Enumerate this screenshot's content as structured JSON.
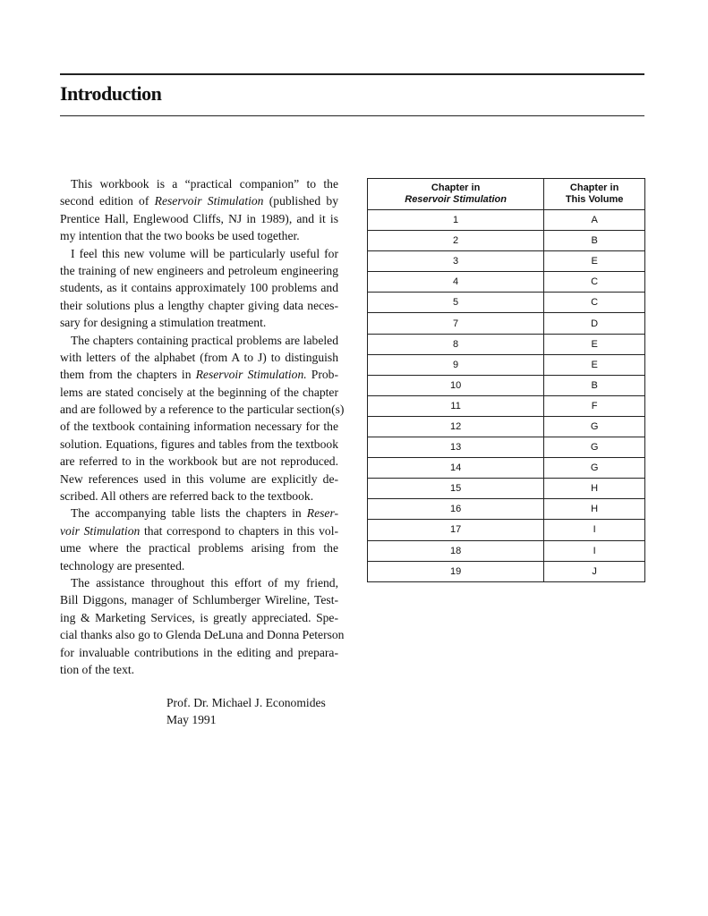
{
  "title": "Introduction",
  "body_lines": [
    {
      "ind": true,
      "parts": [
        {
          "t": "This workbook is a “practical companion” to the"
        }
      ]
    },
    {
      "parts": [
        {
          "t": "second edition of "
        },
        {
          "t": "Reservoir Stimulation",
          "i": true
        },
        {
          "t": " (published by"
        }
      ]
    },
    {
      "parts": [
        {
          "t": "Prentice Hall, Englewood Cliffs, NJ in 1989), and it is"
        }
      ]
    },
    {
      "last": true,
      "parts": [
        {
          "t": "my intention that the two books be used together."
        }
      ]
    },
    {
      "ind": true,
      "parts": [
        {
          "t": "I feel this new volume will be particularly useful for"
        }
      ]
    },
    {
      "parts": [
        {
          "t": "the training of new engineers and petroleum engineering"
        }
      ]
    },
    {
      "parts": [
        {
          "t": "students, as it contains approximately 100 problems and"
        }
      ]
    },
    {
      "parts": [
        {
          "t": "their solutions plus a lengthy chapter giving data neces-"
        }
      ]
    },
    {
      "last": true,
      "parts": [
        {
          "t": "sary for designing a stimulation treatment."
        }
      ]
    },
    {
      "ind": true,
      "parts": [
        {
          "t": "The chapters containing practical problems are labeled"
        }
      ]
    },
    {
      "parts": [
        {
          "t": "with letters of the alphabet (from A to J) to distinguish"
        }
      ]
    },
    {
      "parts": [
        {
          "t": "them from the chapters in "
        },
        {
          "t": "Reservoir Stimulation.",
          "i": true
        },
        {
          "t": " Prob-"
        }
      ]
    },
    {
      "parts": [
        {
          "t": "lems are stated concisely at the beginning of the chapter"
        }
      ]
    },
    {
      "parts": [
        {
          "t": "and are followed by a reference to the particular section(s)"
        }
      ]
    },
    {
      "parts": [
        {
          "t": "of the textbook containing information necessary for the"
        }
      ]
    },
    {
      "parts": [
        {
          "t": "solution. Equations, figures and tables from the textbook"
        }
      ]
    },
    {
      "parts": [
        {
          "t": "are referred to in the workbook but are not reproduced."
        }
      ]
    },
    {
      "parts": [
        {
          "t": "New references used in this volume are explicitly de-"
        }
      ]
    },
    {
      "last": true,
      "parts": [
        {
          "t": "scribed. All others are referred back to the textbook."
        }
      ]
    },
    {
      "ind": true,
      "parts": [
        {
          "t": "The accompanying table lists the chapters in "
        },
        {
          "t": "Reser-",
          "i": true
        }
      ]
    },
    {
      "parts": [
        {
          "t": "voir Stimulation",
          "i": true
        },
        {
          "t": " that correspond to chapters in this vol-"
        }
      ]
    },
    {
      "parts": [
        {
          "t": "ume where the practical problems arising from the"
        }
      ]
    },
    {
      "last": true,
      "parts": [
        {
          "t": "technology are presented."
        }
      ]
    },
    {
      "ind": true,
      "parts": [
        {
          "t": "The assistance throughout this effort of my friend,"
        }
      ]
    },
    {
      "parts": [
        {
          "t": "Bill Diggons, manager of Schlumberger Wireline, Test-"
        }
      ]
    },
    {
      "parts": [
        {
          "t": "ing & Marketing Services, is greatly appreciated. Spe-"
        }
      ]
    },
    {
      "parts": [
        {
          "t": "cial thanks also go to Glenda DeLuna and Donna Peterson"
        }
      ]
    },
    {
      "parts": [
        {
          "t": "for invaluable contributions in the editing and prepara-"
        }
      ]
    },
    {
      "last": true,
      "parts": [
        {
          "t": "tion of the text."
        }
      ]
    }
  ],
  "signature": {
    "name": "Prof. Dr. Michael J. Economides",
    "date": "May 1991"
  },
  "table": {
    "headers": [
      {
        "line1": "Chapter in",
        "line2": "Reservoir Stimulation"
      },
      {
        "line1": "Chapter in",
        "line2": "This Volume"
      }
    ],
    "rows": [
      [
        "1",
        "A"
      ],
      [
        "2",
        "B"
      ],
      [
        "3",
        "E"
      ],
      [
        "4",
        "C"
      ],
      [
        "5",
        "C"
      ],
      [
        "7",
        "D"
      ],
      [
        "8",
        "E"
      ],
      [
        "9",
        "E"
      ],
      [
        "10",
        "B"
      ],
      [
        "11",
        "F"
      ],
      [
        "12",
        "G"
      ],
      [
        "13",
        "G"
      ],
      [
        "14",
        "G"
      ],
      [
        "15",
        "H"
      ],
      [
        "16",
        "H"
      ],
      [
        "17",
        "I"
      ],
      [
        "18",
        "I"
      ],
      [
        "19",
        "J"
      ]
    ]
  }
}
